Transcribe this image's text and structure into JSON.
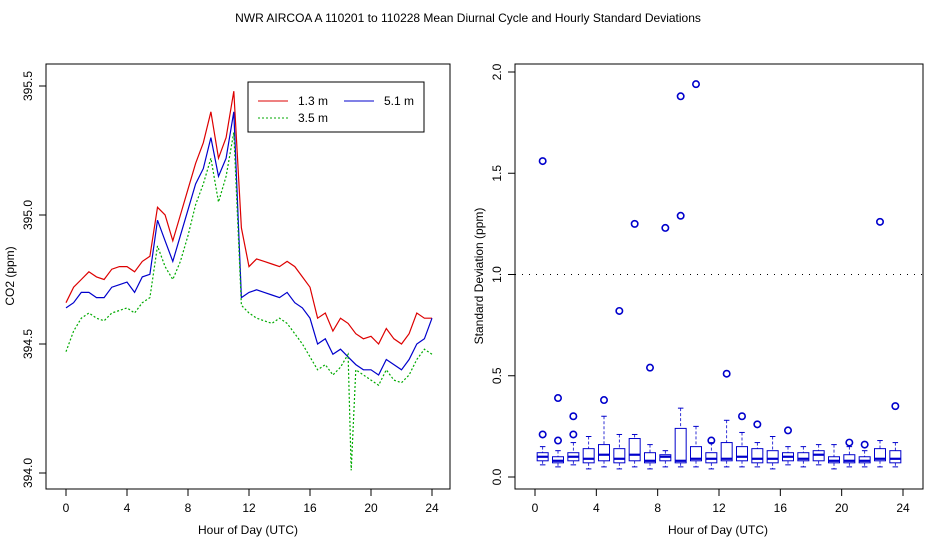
{
  "figure_title": "NWR   AIRCOA A   110201 to 110228   Mean Diurnal Cycle and Hourly Standard Deviations",
  "chart_data": [
    {
      "type": "line",
      "title": "",
      "xlabel": "Hour of Day (UTC)",
      "ylabel": "CO2 (ppm)",
      "xlim": [
        0,
        24
      ],
      "ylim": [
        394.0,
        395.5
      ],
      "xticks": [
        "0",
        "4",
        "8",
        "12",
        "16",
        "20",
        "24"
      ],
      "yticks": [
        "394.0",
        "394.5",
        "395.0",
        "395.5"
      ],
      "legend": {
        "position": "top-right",
        "entries": [
          "1.3 m",
          "5.1 m",
          "3.5 m"
        ]
      },
      "series": [
        {
          "name": "1.3 m",
          "color": "#dd0000",
          "dash": "",
          "x": [
            0,
            0.5,
            1,
            1.5,
            2,
            2.5,
            3,
            3.5,
            4,
            4.5,
            5,
            5.5,
            6,
            6.5,
            7,
            7.5,
            8,
            8.5,
            9,
            9.5,
            10,
            10.5,
            11,
            11.5,
            12,
            12.5,
            13,
            13.5,
            14,
            14.5,
            15,
            15.5,
            16,
            16.5,
            17,
            17.5,
            18,
            18.5,
            19,
            19.5,
            20,
            20.5,
            21,
            21.5,
            22,
            22.5,
            23,
            23.5,
            24
          ],
          "values": [
            394.66,
            394.72,
            394.75,
            394.78,
            394.76,
            394.75,
            394.79,
            394.8,
            394.8,
            394.78,
            394.82,
            394.84,
            395.03,
            395.0,
            394.9,
            395.0,
            395.1,
            395.2,
            395.28,
            395.4,
            395.22,
            395.3,
            395.48,
            394.95,
            394.8,
            394.83,
            394.82,
            394.81,
            394.8,
            394.82,
            394.8,
            394.76,
            394.72,
            394.6,
            394.62,
            394.55,
            394.6,
            394.58,
            394.54,
            394.52,
            394.53,
            394.5,
            394.56,
            394.52,
            394.5,
            394.54,
            394.62,
            394.6,
            394.6
          ]
        },
        {
          "name": "5.1 m",
          "color": "#0000cc",
          "dash": "",
          "x": [
            0,
            0.5,
            1,
            1.5,
            2,
            2.5,
            3,
            3.5,
            4,
            4.5,
            5,
            5.5,
            6,
            6.5,
            7,
            7.5,
            8,
            8.5,
            9,
            9.5,
            10,
            10.5,
            11,
            11.5,
            12,
            12.5,
            13,
            13.5,
            14,
            14.5,
            15,
            15.5,
            16,
            16.5,
            17,
            17.5,
            18,
            18.5,
            19,
            19.5,
            20,
            20.5,
            21,
            21.5,
            22,
            22.5,
            23,
            23.5,
            24
          ],
          "values": [
            394.64,
            394.66,
            394.7,
            394.7,
            394.68,
            394.68,
            394.72,
            394.73,
            394.74,
            394.7,
            394.76,
            394.77,
            394.98,
            394.9,
            394.82,
            394.92,
            395.02,
            395.12,
            395.18,
            395.3,
            395.15,
            395.22,
            395.4,
            394.68,
            394.7,
            394.71,
            394.7,
            394.69,
            394.68,
            394.7,
            394.66,
            394.64,
            394.6,
            394.5,
            394.52,
            394.46,
            394.48,
            394.45,
            394.42,
            394.4,
            394.4,
            394.38,
            394.44,
            394.42,
            394.4,
            394.44,
            394.5,
            394.52,
            394.6
          ]
        },
        {
          "name": "3.5 m",
          "color": "#00aa00",
          "dash": "2,2",
          "x": [
            0,
            0.5,
            1,
            1.5,
            2,
            2.5,
            3,
            3.5,
            4,
            4.5,
            5,
            5.5,
            6,
            6.5,
            7,
            7.5,
            8,
            8.5,
            9,
            9.5,
            10,
            10.5,
            11,
            11.5,
            12,
            12.5,
            13,
            13.5,
            14,
            14.5,
            15,
            15.5,
            16,
            16.5,
            17,
            17.5,
            18,
            18.5,
            18.7,
            19,
            19.5,
            20,
            20.5,
            21,
            21.5,
            22,
            22.5,
            23,
            23.5,
            24
          ],
          "values": [
            394.47,
            394.55,
            394.6,
            394.62,
            394.6,
            394.59,
            394.62,
            394.63,
            394.64,
            394.62,
            394.66,
            394.68,
            394.88,
            394.8,
            394.75,
            394.82,
            394.92,
            395.04,
            395.12,
            395.22,
            395.05,
            395.15,
            395.32,
            394.65,
            394.62,
            394.6,
            394.59,
            394.58,
            394.6,
            394.58,
            394.54,
            394.5,
            394.45,
            394.4,
            394.42,
            394.38,
            394.41,
            394.46,
            394.01,
            394.4,
            394.38,
            394.36,
            394.34,
            394.4,
            394.36,
            394.35,
            394.38,
            394.44,
            394.48,
            394.46
          ]
        }
      ]
    },
    {
      "type": "box",
      "title": "",
      "xlabel": "Hour of Day (UTC)",
      "ylabel": "Standard Deviation (ppm)",
      "xlim": [
        -1,
        25
      ],
      "ylim": [
        0,
        2.0
      ],
      "xticks": [
        "0",
        "4",
        "8",
        "12",
        "16",
        "20",
        "24"
      ],
      "yticks": [
        "0.0",
        "0.5",
        "1.0",
        "1.5",
        "2.0"
      ],
      "reference_line": 1.0,
      "color": "#0000cc",
      "boxes": [
        {
          "hour": 0.5,
          "low": 0.06,
          "q1": 0.08,
          "median": 0.1,
          "q3": 0.12,
          "high": 0.15
        },
        {
          "hour": 1.5,
          "low": 0.05,
          "q1": 0.07,
          "median": 0.08,
          "q3": 0.1,
          "high": 0.13
        },
        {
          "hour": 2.5,
          "low": 0.06,
          "q1": 0.08,
          "median": 0.1,
          "q3": 0.12,
          "high": 0.17
        },
        {
          "hour": 3.5,
          "low": 0.04,
          "q1": 0.07,
          "median": 0.09,
          "q3": 0.14,
          "high": 0.2
        },
        {
          "hour": 4.5,
          "low": 0.05,
          "q1": 0.08,
          "median": 0.11,
          "q3": 0.16,
          "high": 0.3
        },
        {
          "hour": 5.5,
          "low": 0.04,
          "q1": 0.07,
          "median": 0.09,
          "q3": 0.14,
          "high": 0.21
        },
        {
          "hour": 6.5,
          "low": 0.05,
          "q1": 0.08,
          "median": 0.11,
          "q3": 0.19,
          "high": 0.21
        },
        {
          "hour": 7.5,
          "low": 0.04,
          "q1": 0.07,
          "median": 0.08,
          "q3": 0.12,
          "high": 0.16
        },
        {
          "hour": 8.5,
          "low": 0.05,
          "q1": 0.08,
          "median": 0.1,
          "q3": 0.11,
          "high": 0.13
        },
        {
          "hour": 9.5,
          "low": 0.05,
          "q1": 0.07,
          "median": 0.08,
          "q3": 0.24,
          "high": 0.34
        },
        {
          "hour": 10.5,
          "low": 0.05,
          "q1": 0.08,
          "median": 0.09,
          "q3": 0.15,
          "high": 0.25
        },
        {
          "hour": 11.5,
          "low": 0.04,
          "q1": 0.07,
          "median": 0.09,
          "q3": 0.12,
          "high": 0.17
        },
        {
          "hour": 12.5,
          "low": 0.05,
          "q1": 0.08,
          "median": 0.09,
          "q3": 0.17,
          "high": 0.28
        },
        {
          "hour": 13.5,
          "low": 0.05,
          "q1": 0.08,
          "median": 0.1,
          "q3": 0.15,
          "high": 0.22
        },
        {
          "hour": 14.5,
          "low": 0.05,
          "q1": 0.07,
          "median": 0.09,
          "q3": 0.14,
          "high": 0.17
        },
        {
          "hour": 15.5,
          "low": 0.04,
          "q1": 0.07,
          "median": 0.09,
          "q3": 0.13,
          "high": 0.2
        },
        {
          "hour": 16.5,
          "low": 0.06,
          "q1": 0.08,
          "median": 0.1,
          "q3": 0.12,
          "high": 0.15
        },
        {
          "hour": 17.5,
          "low": 0.05,
          "q1": 0.08,
          "median": 0.09,
          "q3": 0.12,
          "high": 0.15
        },
        {
          "hour": 18.5,
          "low": 0.06,
          "q1": 0.08,
          "median": 0.11,
          "q3": 0.13,
          "high": 0.16
        },
        {
          "hour": 19.5,
          "low": 0.04,
          "q1": 0.07,
          "median": 0.08,
          "q3": 0.1,
          "high": 0.16
        },
        {
          "hour": 20.5,
          "low": 0.05,
          "q1": 0.07,
          "median": 0.08,
          "q3": 0.11,
          "high": 0.15
        },
        {
          "hour": 21.5,
          "low": 0.05,
          "q1": 0.07,
          "median": 0.08,
          "q3": 0.1,
          "high": 0.13
        },
        {
          "hour": 22.5,
          "low": 0.05,
          "q1": 0.08,
          "median": 0.09,
          "q3": 0.14,
          "high": 0.18
        },
        {
          "hour": 23.5,
          "low": 0.05,
          "q1": 0.07,
          "median": 0.09,
          "q3": 0.13,
          "high": 0.17
        }
      ],
      "outliers": [
        {
          "hour": 0.5,
          "value": 1.56
        },
        {
          "hour": 0.5,
          "value": 0.21
        },
        {
          "hour": 1.5,
          "value": 0.39
        },
        {
          "hour": 1.5,
          "value": 0.18
        },
        {
          "hour": 2.5,
          "value": 0.3
        },
        {
          "hour": 2.5,
          "value": 0.21
        },
        {
          "hour": 4.5,
          "value": 0.38
        },
        {
          "hour": 5.5,
          "value": 0.82
        },
        {
          "hour": 6.5,
          "value": 1.25
        },
        {
          "hour": 7.5,
          "value": 0.54
        },
        {
          "hour": 8.5,
          "value": 1.23
        },
        {
          "hour": 9.5,
          "value": 1.88
        },
        {
          "hour": 9.5,
          "value": 1.29
        },
        {
          "hour": 10.5,
          "value": 1.94
        },
        {
          "hour": 11.5,
          "value": 0.18
        },
        {
          "hour": 12.5,
          "value": 0.51
        },
        {
          "hour": 13.5,
          "value": 0.3
        },
        {
          "hour": 14.5,
          "value": 0.26
        },
        {
          "hour": 16.5,
          "value": 0.23
        },
        {
          "hour": 20.5,
          "value": 0.17
        },
        {
          "hour": 21.5,
          "value": 0.16
        },
        {
          "hour": 22.5,
          "value": 1.26
        },
        {
          "hour": 23.5,
          "value": 0.35
        }
      ]
    }
  ]
}
